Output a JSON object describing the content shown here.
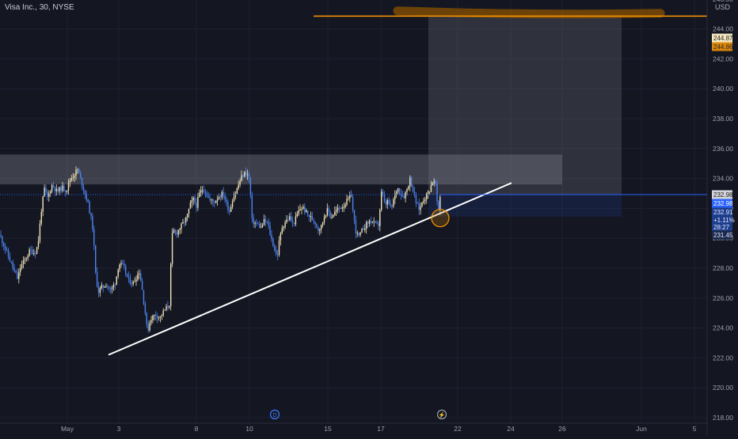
{
  "chart_title": "Visa Inc., 30, NYSE",
  "currency": "USD",
  "colors": {
    "background": "#141722",
    "grid": "#1d2130",
    "up": "#f0e2b6",
    "down": "#4c83f0",
    "trendline": "#ffffff",
    "target_line": "#ff9800",
    "highlight_brush": "#8a5200",
    "current_price": "#2962ff"
  },
  "chart_data": {
    "type": "candlestick",
    "y_ticks": [
      218,
      220,
      222,
      224,
      226,
      228,
      230,
      232,
      234,
      236,
      238,
      240,
      242,
      244,
      246
    ],
    "ylim": [
      217.4,
      247.4
    ],
    "x_labels": [
      "May",
      "3",
      "8",
      "10",
      "15",
      "17",
      "22",
      "24",
      "26",
      "Jun",
      "5"
    ],
    "price_labels": [
      {
        "text": "244.87",
        "style": "target"
      },
      {
        "text": "244.86",
        "style": "target-active"
      },
      {
        "text": "232.98",
        "style": "gray"
      },
      {
        "text": "232.98",
        "style": "blue"
      },
      {
        "text": "232.91",
        "style": "blue-dark"
      },
      {
        "text": "+1.11%",
        "style": "blue-dark"
      },
      {
        "text": "28:27",
        "style": "blue-dark"
      },
      {
        "text": "231.45",
        "style": "plain"
      }
    ],
    "price_path": [
      [
        0,
        230.2
      ],
      [
        6,
        229.4
      ],
      [
        12,
        228.6
      ],
      [
        18,
        227.8
      ],
      [
        22,
        227.3
      ],
      [
        26,
        228.1
      ],
      [
        32,
        228.6
      ],
      [
        38,
        229.2
      ],
      [
        44,
        229.0
      ],
      [
        48,
        229.6
      ],
      [
        52,
        231.8
      ],
      [
        56,
        233.3
      ],
      [
        60,
        232.7
      ],
      [
        66,
        233.6
      ],
      [
        72,
        233.1
      ],
      [
        78,
        233.4
      ],
      [
        84,
        233.2
      ],
      [
        88,
        233.9
      ],
      [
        94,
        234.3
      ],
      [
        98,
        234.6
      ],
      [
        102,
        233.9
      ],
      [
        106,
        233.2
      ],
      [
        110,
        232.6
      ],
      [
        114,
        231.6
      ],
      [
        118,
        230.4
      ],
      [
        120,
        227.9
      ],
      [
        124,
        226.4
      ],
      [
        128,
        226.7
      ],
      [
        134,
        226.9
      ],
      [
        140,
        226.5
      ],
      [
        146,
        227.1
      ],
      [
        150,
        228.3
      ],
      [
        156,
        228.1
      ],
      [
        162,
        227.2
      ],
      [
        168,
        227.0
      ],
      [
        172,
        227.4
      ],
      [
        176,
        227.8
      ],
      [
        180,
        226.4
      ],
      [
        184,
        224.8
      ],
      [
        186,
        223.7
      ],
      [
        190,
        224.6
      ],
      [
        196,
        224.9
      ],
      [
        202,
        224.7
      ],
      [
        208,
        225.2
      ],
      [
        214,
        225.6
      ],
      [
        216,
        228.6
      ],
      [
        218,
        230.6
      ],
      [
        222,
        230.3
      ],
      [
        226,
        230.6
      ],
      [
        230,
        230.9
      ],
      [
        236,
        231.4
      ],
      [
        240,
        232.2
      ],
      [
        244,
        232.6
      ],
      [
        248,
        232.2
      ],
      [
        252,
        233.0
      ],
      [
        256,
        233.3
      ],
      [
        260,
        233.1
      ],
      [
        264,
        232.6
      ],
      [
        270,
        232.4
      ],
      [
        276,
        232.8
      ],
      [
        282,
        233.0
      ],
      [
        286,
        232.3
      ],
      [
        290,
        231.8
      ],
      [
        294,
        232.7
      ],
      [
        298,
        233.1
      ],
      [
        302,
        233.7
      ],
      [
        306,
        234.2
      ],
      [
        310,
        234.4
      ],
      [
        314,
        234.2
      ],
      [
        316,
        233.3
      ],
      [
        318,
        231.2
      ],
      [
        322,
        231.0
      ],
      [
        326,
        230.9
      ],
      [
        330,
        230.7
      ],
      [
        334,
        231.2
      ],
      [
        338,
        231.0
      ],
      [
        342,
        230.1
      ],
      [
        346,
        229.4
      ],
      [
        350,
        228.7
      ],
      [
        352,
        229.6
      ],
      [
        356,
        230.7
      ],
      [
        360,
        231.1
      ],
      [
        366,
        231.4
      ],
      [
        370,
        230.9
      ],
      [
        374,
        231.4
      ],
      [
        378,
        231.9
      ],
      [
        382,
        232.1
      ],
      [
        388,
        231.6
      ],
      [
        392,
        231.4
      ],
      [
        398,
        231.1
      ],
      [
        402,
        230.6
      ],
      [
        406,
        230.8
      ],
      [
        410,
        231.6
      ],
      [
        414,
        231.9
      ],
      [
        418,
        231.4
      ],
      [
        422,
        231.7
      ],
      [
        428,
        232.0
      ],
      [
        434,
        232.2
      ],
      [
        440,
        232.6
      ],
      [
        444,
        232.9
      ],
      [
        446,
        231.6
      ],
      [
        450,
        230.3
      ],
      [
        454,
        230.1
      ],
      [
        458,
        230.6
      ],
      [
        462,
        230.9
      ],
      [
        468,
        231.2
      ],
      [
        474,
        230.9
      ],
      [
        478,
        230.9
      ],
      [
        482,
        233.2
      ],
      [
        486,
        232.2
      ],
      [
        490,
        232.5
      ],
      [
        494,
        231.9
      ],
      [
        498,
        232.8
      ],
      [
        502,
        233.4
      ],
      [
        506,
        233.0
      ],
      [
        510,
        232.8
      ],
      [
        514,
        233.3
      ],
      [
        518,
        234.0
      ],
      [
        522,
        233.1
      ],
      [
        526,
        232.3
      ],
      [
        530,
        231.9
      ],
      [
        534,
        232.6
      ],
      [
        538,
        232.8
      ],
      [
        542,
        233.2
      ],
      [
        546,
        233.8
      ],
      [
        550,
        233.7
      ],
      [
        552,
        232.3
      ],
      [
        554,
        231.9
      ],
      [
        556,
        232.9
      ]
    ],
    "annotations": {
      "trendline": {
        "from": [
          137,
          222.2
        ],
        "to": [
          646,
          233.7
        ]
      },
      "resistance_zone": {
        "x0": 0,
        "x1": 710,
        "y_low": 233.6,
        "y_high": 235.6
      },
      "target_line": {
        "x0": 396,
        "x1": 893,
        "y": 244.86
      },
      "target_box": {
        "x0": 541,
        "x1": 785,
        "y_low": 232.92,
        "y_high": 244.86
      },
      "stop_box": {
        "x0": 541,
        "x1": 785,
        "y_low": 231.45,
        "y_high": 232.92
      },
      "touch_circle": {
        "x": 556,
        "y": 231.35
      },
      "brush_highlight": {
        "x0": 502,
        "x1": 834,
        "y": 245.0
      }
    }
  },
  "event_icons": [
    {
      "symbol": "D",
      "x": 347
    },
    {
      "symbol": "⚡",
      "x": 558
    }
  ]
}
